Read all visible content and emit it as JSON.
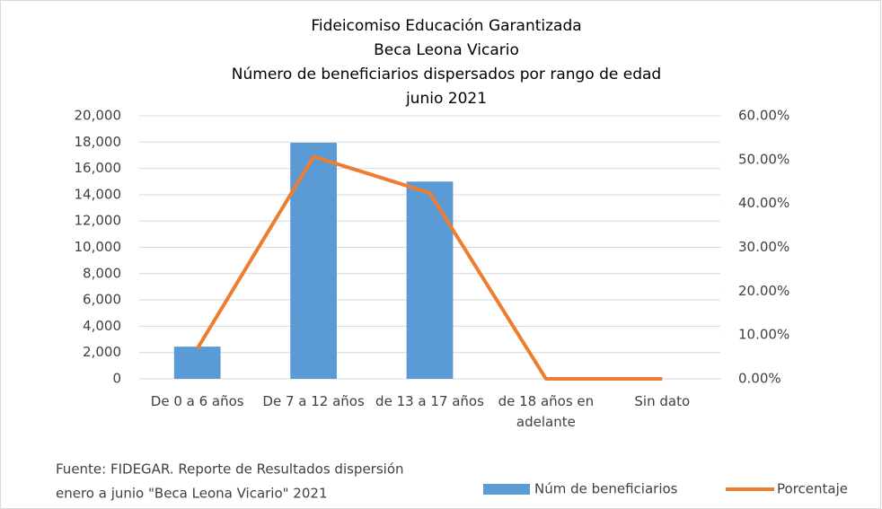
{
  "chart_data": {
    "type": "bar",
    "title": [
      "Fideicomiso Educación Garantizada",
      "Beca Leona Vicario",
      "Número de beneficiarios dispersados por rango de edad",
      "junio 2021"
    ],
    "categories": [
      "De 0 a 6 años",
      "De 7 a 12 años",
      "de 13 a 17 años",
      "de 18 años en adelante",
      "Sin dato"
    ],
    "series": [
      {
        "name": "Núm de beneficiarios",
        "type": "bar",
        "color": "#5b9bd5",
        "values": [
          2450,
          17950,
          15000,
          0,
          0
        ]
      },
      {
        "name": "Porcentaje",
        "type": "line",
        "axis": "y2",
        "color": "#ed7d31",
        "values": [
          6.9,
          50.7,
          42.4,
          0,
          0
        ]
      }
    ],
    "ylim": [
      0,
      20000
    ],
    "yticks": [
      0,
      {
        "value": 2000,
        "label": "2,000"
      },
      {
        "value": 4000,
        "label": "4,000"
      },
      {
        "value": 6000,
        "label": "6,000"
      },
      {
        "value": 8000,
        "label": "8,000"
      },
      {
        "value": 10000,
        "label": "10,000"
      },
      {
        "value": 12000,
        "label": "12,000"
      },
      {
        "value": 14000,
        "label": "14,000"
      },
      {
        "value": 16000,
        "label": "16,000"
      },
      {
        "value": 18000,
        "label": "18,000"
      },
      {
        "value": 20000,
        "label": "20,000"
      }
    ],
    "y2lim": [
      0,
      60
    ],
    "y2ticks": [
      {
        "value": 0,
        "label": "0.00%"
      },
      {
        "value": 10,
        "label": "10.00%"
      },
      {
        "value": 20,
        "label": "20.00%"
      },
      {
        "value": 30,
        "label": "30.00%"
      },
      {
        "value": 40,
        "label": "40.00%"
      },
      {
        "value": 50,
        "label": "50.00%"
      },
      {
        "value": 60,
        "label": "60.00%"
      }
    ],
    "grid": true,
    "legend": "bottom-right",
    "source": [
      "Fuente: FIDEGAR. Reporte de Resultados dispersión",
      "enero a junio \"Beca Leona Vicario\" 2021"
    ]
  }
}
